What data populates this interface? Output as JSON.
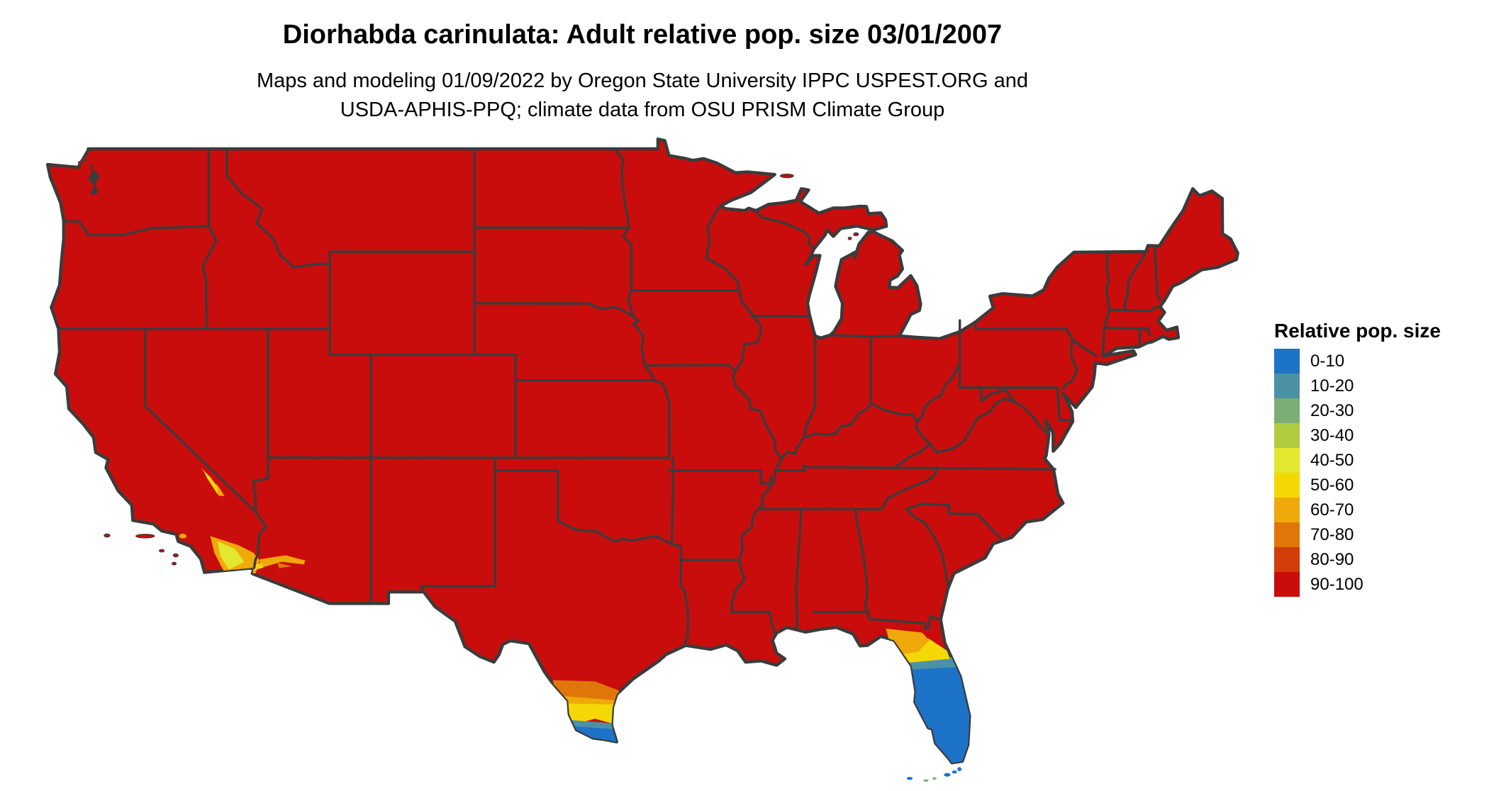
{
  "title": "Diorhabda carinulata: Adult relative pop. size 03/01/2007",
  "subtitle_line1": "Maps and modeling 01/09/2022 by Oregon State University IPPC USPEST.ORG and",
  "subtitle_line2": "USDA-APHIS-PPQ; climate data from OSU PRISM Climate Group",
  "legend": {
    "title": "Relative pop. size",
    "items": [
      {
        "label": "0-10",
        "color": "#1C73C8"
      },
      {
        "label": "10-20",
        "color": "#4C92A5"
      },
      {
        "label": "20-30",
        "color": "#7BAE74"
      },
      {
        "label": "30-40",
        "color": "#B0CC3F"
      },
      {
        "label": "40-50",
        "color": "#E3E72D"
      },
      {
        "label": "50-60",
        "color": "#F4D806"
      },
      {
        "label": "60-70",
        "color": "#EFA90A"
      },
      {
        "label": "70-80",
        "color": "#E17608"
      },
      {
        "label": "80-90",
        "color": "#D23D09"
      },
      {
        "label": "90-100",
        "color": "#C90D0D"
      }
    ]
  },
  "map": {
    "background": "#FFFFFF",
    "border_color": "#3B3B3B",
    "regions": [
      {
        "name": "conus-base",
        "bucket": "90-100"
      },
      {
        "name": "south-florida",
        "bucket": "0-10"
      },
      {
        "name": "central-florida-band",
        "bucket": "10-20"
      },
      {
        "name": "north-florida-band",
        "bucket": "50-60"
      },
      {
        "name": "florida-big-bend",
        "bucket": "60-70"
      },
      {
        "name": "rio-grande-valley",
        "bucket": "0-10"
      },
      {
        "name": "south-texas-teal-band",
        "bucket": "10-20"
      },
      {
        "name": "south-texas-yellow-band",
        "bucket": "50-60"
      },
      {
        "name": "south-texas-amber-band",
        "bucket": "60-70"
      },
      {
        "name": "south-texas-orange-band",
        "bucket": "70-80"
      },
      {
        "name": "imperial-valley-core",
        "bucket": "40-50"
      },
      {
        "name": "imperial-valley-fringe",
        "bucket": "60-70"
      },
      {
        "name": "gila-river-arizona",
        "bucket": "60-70"
      },
      {
        "name": "gila-river-arizona-deep",
        "bucket": "70-80"
      },
      {
        "name": "death-valley-nevada",
        "bucket": "50-60"
      },
      {
        "name": "death-valley-fringe",
        "bucket": "60-70"
      },
      {
        "name": "yuma-border-spot",
        "bucket": "50-60"
      },
      {
        "name": "los-angeles-basin-spot",
        "bucket": "60-70"
      },
      {
        "name": "florida-keys-low",
        "bucket": "0-10"
      },
      {
        "name": "florida-keys-mid",
        "bucket": "20-30"
      },
      {
        "name": "channel-islands",
        "bucket": "90-100"
      },
      {
        "name": "offshore-islands",
        "bucket": "90-100"
      }
    ]
  }
}
